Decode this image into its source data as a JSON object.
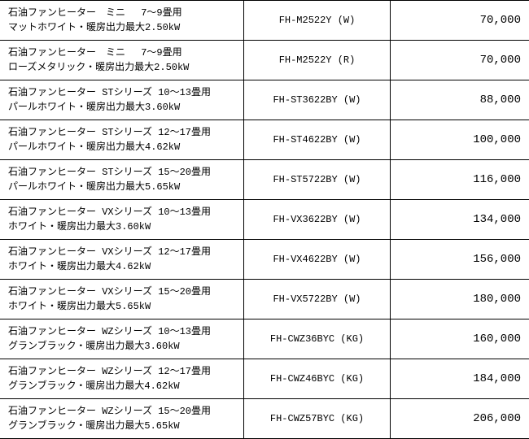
{
  "rows": [
    {
      "l1": "石油ファンヒーター　ミニ　 7～9畳用",
      "l2": "マットホワイト・暖房出力最大2.50kW",
      "model": "FH-M2522Y (W)",
      "price": "70,000"
    },
    {
      "l1": "石油ファンヒーター　ミニ　 7～9畳用",
      "l2": "ローズメタリック・暖房出力最大2.50kW",
      "model": "FH-M2522Y (R)",
      "price": "70,000"
    },
    {
      "l1": "石油ファンヒーター STシリーズ 10～13畳用",
      "l2": "パールホワイト・暖房出力最大3.60kW",
      "model": "FH-ST3622BY (W)",
      "price": "88,000"
    },
    {
      "l1": "石油ファンヒーター STシリーズ 12～17畳用",
      "l2": "パールホワイト・暖房出力最大4.62kW",
      "model": "FH-ST4622BY (W)",
      "price": "100,000"
    },
    {
      "l1": "石油ファンヒーター STシリーズ 15～20畳用",
      "l2": "パールホワイト・暖房出力最大5.65kW",
      "model": "FH-ST5722BY (W)",
      "price": "116,000"
    },
    {
      "l1": "石油ファンヒーター VXシリーズ 10～13畳用",
      "l2": "ホワイト・暖房出力最大3.60kW",
      "model": "FH-VX3622BY (W)",
      "price": "134,000"
    },
    {
      "l1": "石油ファンヒーター VXシリーズ 12～17畳用",
      "l2": "ホワイト・暖房出力最大4.62kW",
      "model": "FH-VX4622BY (W)",
      "price": "156,000"
    },
    {
      "l1": "石油ファンヒーター VXシリーズ 15～20畳用",
      "l2": "ホワイト・暖房出力最大5.65kW",
      "model": "FH-VX5722BY (W)",
      "price": "180,000"
    },
    {
      "l1": "石油ファンヒーター WZシリーズ 10～13畳用",
      "l2": "グランブラック・暖房出力最大3.60kW",
      "model": "FH-CWZ36BYC (KG)",
      "price": "160,000"
    },
    {
      "l1": "石油ファンヒーター WZシリーズ 12～17畳用",
      "l2": "グランブラック・暖房出力最大4.62kW",
      "model": "FH-CWZ46BYC (KG)",
      "price": "184,000"
    },
    {
      "l1": "石油ファンヒーター WZシリーズ 15～20畳用",
      "l2": "グランブラック・暖房出力最大5.65kW",
      "model": "FH-CWZ57BYC (KG)",
      "price": "206,000"
    }
  ],
  "colors": {
    "border": "#000000",
    "bg": "#ffffff",
    "text": "#000000"
  }
}
